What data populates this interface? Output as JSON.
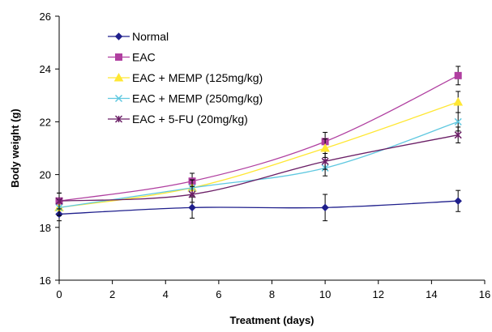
{
  "chart_data": {
    "type": "line",
    "xlabel": "Treatment (days)",
    "ylabel": "Body weight (g)",
    "xlim": [
      0,
      16
    ],
    "ylim": [
      16,
      26
    ],
    "x_ticks": [
      0,
      2,
      4,
      6,
      8,
      10,
      12,
      14,
      16
    ],
    "y_ticks": [
      16,
      18,
      20,
      22,
      24,
      26
    ],
    "grid": false,
    "legend_position": "top-left",
    "x": [
      0,
      5,
      10,
      15
    ],
    "series": [
      {
        "name": "Normal",
        "values": [
          18.5,
          18.75,
          18.75,
          19.0
        ],
        "errors": [
          0.25,
          0.4,
          0.5,
          0.4
        ],
        "color": "#1f1f8c",
        "marker": "diamond"
      },
      {
        "name": "EAC",
        "values": [
          19.0,
          19.75,
          21.25,
          23.75
        ],
        "errors": [
          0.3,
          0.3,
          0.35,
          0.35
        ],
        "color": "#b03fa0",
        "marker": "square"
      },
      {
        "name": "EAC + MEMP (125mg/kg)",
        "values": [
          18.75,
          19.5,
          21.0,
          22.75
        ],
        "errors": [
          0.3,
          0.3,
          0.35,
          0.4
        ],
        "color": "#ffe733",
        "marker": "triangle"
      },
      {
        "name": "EAC + MEMP (250mg/kg)",
        "values": [
          18.75,
          19.5,
          20.25,
          22.0
        ],
        "errors": [
          0.3,
          0.3,
          0.3,
          0.35
        ],
        "color": "#5fc8e0",
        "marker": "x"
      },
      {
        "name": "EAC + 5-FU (20mg/kg)",
        "values": [
          19.0,
          19.25,
          20.5,
          21.5
        ],
        "errors": [
          0.3,
          0.3,
          0.3,
          0.3
        ],
        "color": "#6b1f66",
        "marker": "star"
      }
    ]
  }
}
